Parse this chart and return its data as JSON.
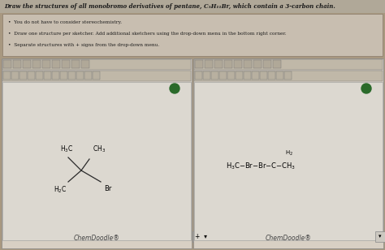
{
  "title": "Draw the structures of all monobromo derivatives of pentane, C₅H₁₁Br, which contain a 3-carbon chain.",
  "bullets": [
    "You do not have to consider stereochemistry.",
    "Draw one structure per sketcher. Add additional sketchers using the drop-down menu in the bottom right corner.",
    "Separate structures with + signs from the drop-down menu."
  ],
  "bg_color": "#a89880",
  "title_bg": "#b0a898",
  "inst_bg": "#c8beb0",
  "inst_border": "#908070",
  "toolbar_bg": "#c0b8a8",
  "toolbar_btn": "#b8b0a0",
  "panel_bg": "#d8d0c4",
  "sketcher_bg": "#dcd8d0",
  "chemdoodle_text": "ChemDoodle®",
  "green_btn": "#2a6a2a",
  "text_color": "#1a1a1a",
  "bond_color": "#2a2a2a"
}
